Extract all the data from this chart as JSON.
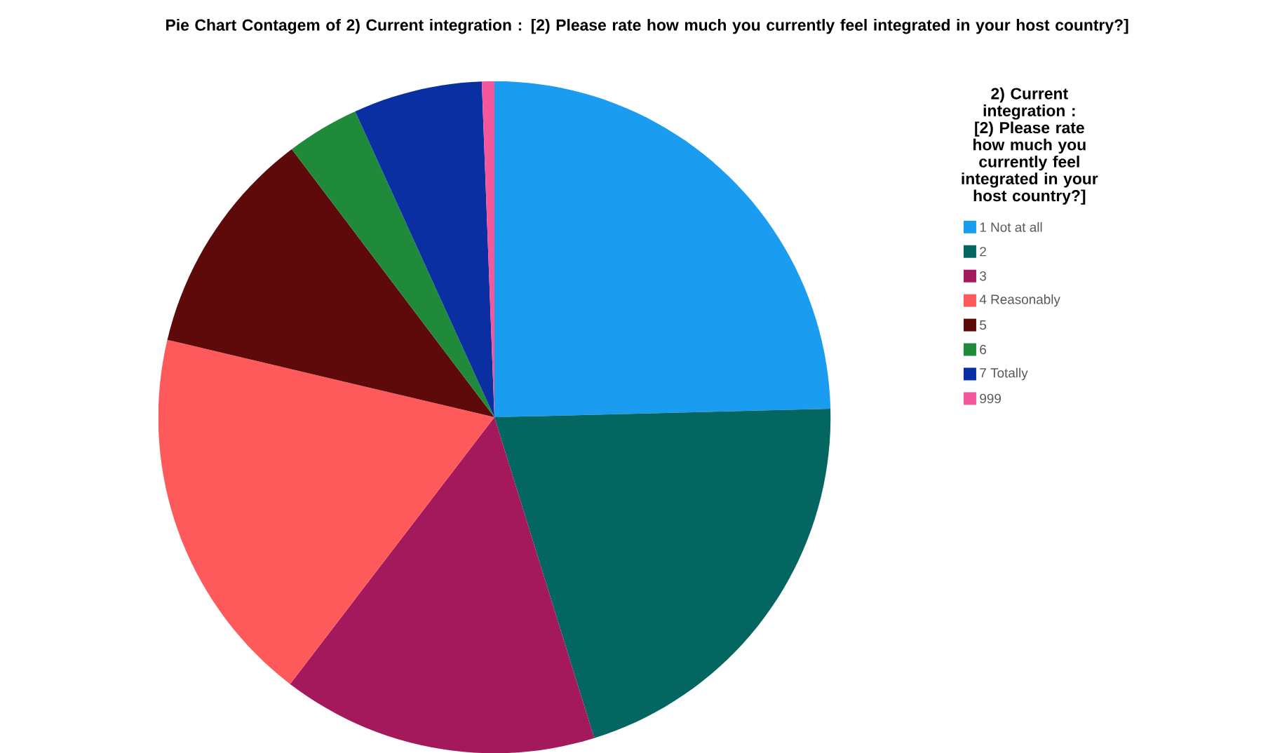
{
  "chart_data": {
    "type": "pie",
    "title": "Pie Chart Contagem of 2) Current integration : [2) Please rate how much you currently feel integrated in your host country?]",
    "legend_title": "2) Current integration : [2) Please rate how much you currently feel integrated in your host country?]",
    "categories": [
      "1 Not at all",
      "2",
      "3",
      "4 Reasonably",
      "5",
      "6",
      "7 Totally",
      "999"
    ],
    "values": [
      24.6,
      20.6,
      15.2,
      18.3,
      11.0,
      3.5,
      6.2,
      0.6
    ],
    "colors": [
      "#1a9cf0",
      "#046661",
      "#a3195b",
      "#fe5a5c",
      "#5e0a0b",
      "#1f8a3a",
      "#0a2fa3",
      "#f5589a"
    ],
    "legend": "right"
  }
}
